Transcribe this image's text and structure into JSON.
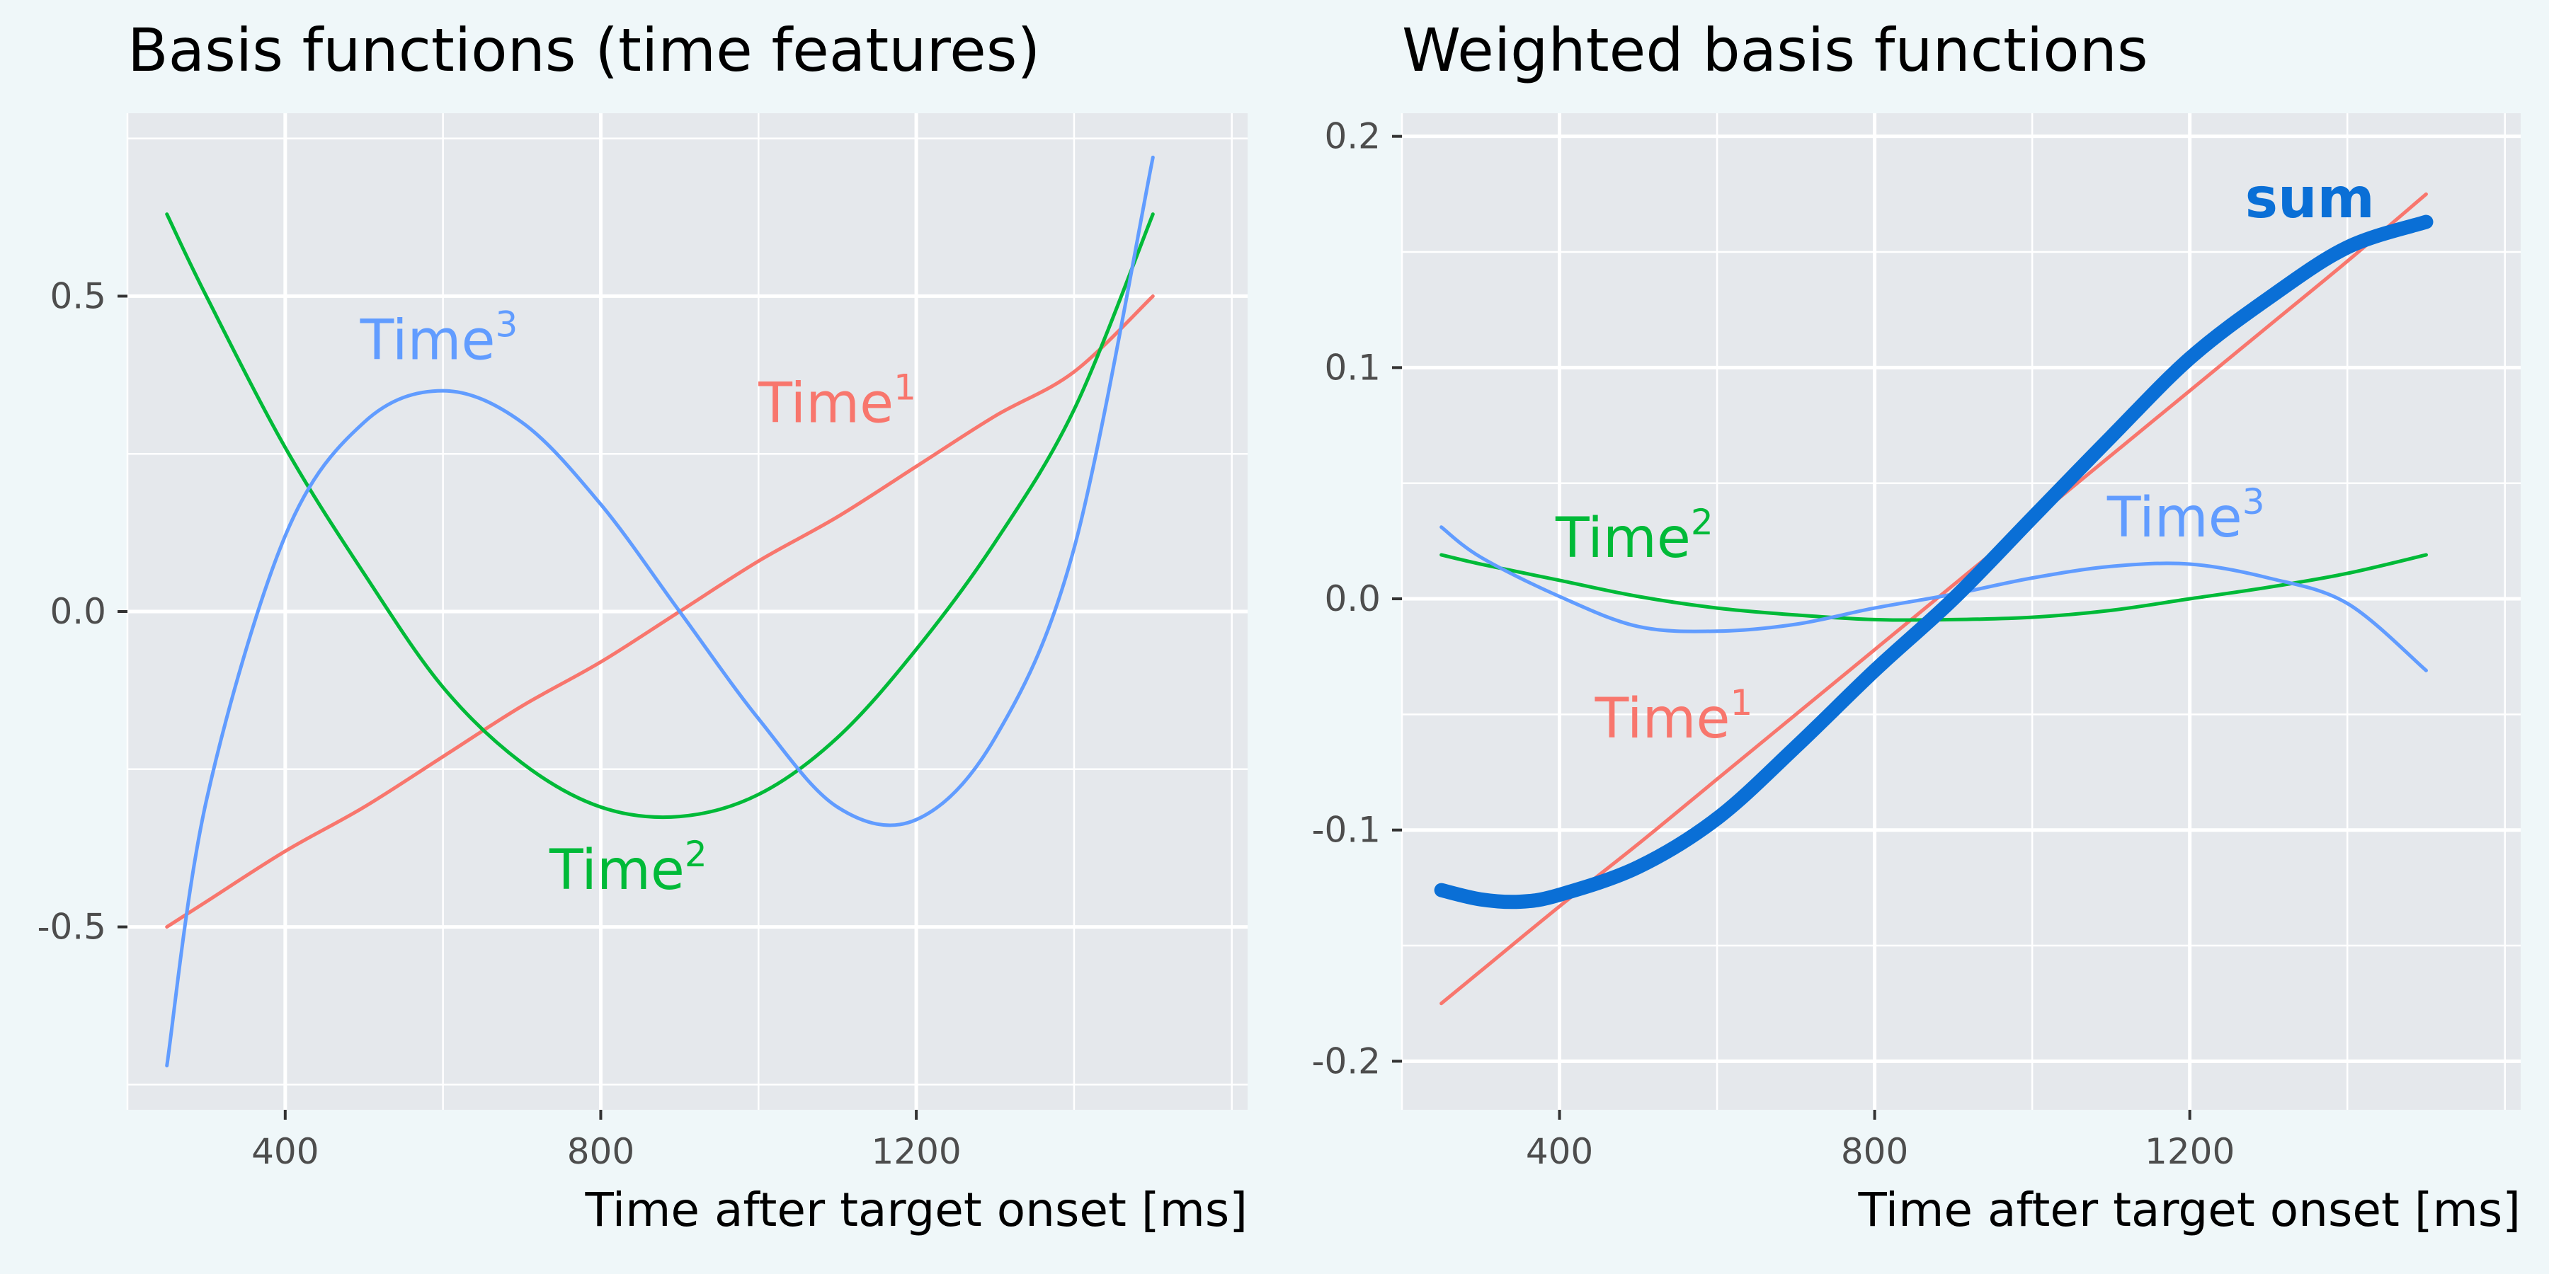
{
  "chart_data": [
    {
      "type": "line",
      "title": "Basis functions (time features)",
      "xlabel": "Time after target onset [ms]",
      "ylabel": "",
      "xlim": [
        200,
        1620
      ],
      "ylim": [
        -0.79,
        0.79
      ],
      "xticks": [
        400,
        800,
        1200
      ],
      "xtick_labels": [
        "400",
        "800",
        "1200"
      ],
      "yticks": [
        -0.5,
        0.0,
        0.5
      ],
      "ytick_labels": [
        "-0.5",
        "0.0",
        "0.5"
      ],
      "grid": true,
      "series": [
        {
          "base": "Time",
          "power": "1",
          "color": "#f8766d",
          "width": 5,
          "label_pos": [
            1000,
            0.3
          ],
          "x": [
            250,
            300,
            400,
            500,
            600,
            700,
            800,
            900,
            1000,
            1100,
            1200,
            1300,
            1400,
            1500
          ],
          "y": [
            -0.5,
            -0.46,
            -0.38,
            -0.31,
            -0.23,
            -0.15,
            -0.08,
            0.0,
            0.08,
            0.15,
            0.23,
            0.31,
            0.38,
            0.5
          ]
        },
        {
          "base": "Time",
          "power": "2",
          "color": "#00ba38",
          "width": 5,
          "label_pos": [
            735,
            -0.44
          ],
          "x": [
            250,
            300,
            400,
            500,
            600,
            700,
            800,
            900,
            1000,
            1100,
            1200,
            1300,
            1400,
            1500
          ],
          "y": [
            0.63,
            0.5,
            0.26,
            0.06,
            -0.12,
            -0.24,
            -0.31,
            -0.325,
            -0.29,
            -0.2,
            -0.06,
            0.11,
            0.32,
            0.63
          ]
        },
        {
          "base": "Time",
          "power": "3",
          "color": "#619cff",
          "width": 5,
          "label_pos": [
            495,
            0.4
          ],
          "x": [
            250,
            300,
            400,
            500,
            600,
            700,
            800,
            900,
            1000,
            1100,
            1200,
            1300,
            1400,
            1500
          ],
          "y": [
            -0.72,
            -0.3,
            0.12,
            0.3,
            0.35,
            0.3,
            0.17,
            0.0,
            -0.17,
            -0.31,
            -0.33,
            -0.2,
            0.1,
            0.72
          ]
        }
      ]
    },
    {
      "type": "line",
      "title": "Weighted basis functions",
      "xlabel": "Time after target onset [ms]",
      "ylabel": "",
      "xlim": [
        200,
        1620
      ],
      "ylim": [
        -0.221,
        0.21
      ],
      "xticks": [
        400,
        800,
        1200
      ],
      "xtick_labels": [
        "400",
        "800",
        "1200"
      ],
      "yticks": [
        -0.2,
        -0.1,
        0.0,
        0.1,
        0.2
      ],
      "ytick_labels": [
        "-0.2",
        "-0.1",
        "0.0",
        "0.1",
        "0.2"
      ],
      "grid": true,
      "series": [
        {
          "base": "Time",
          "power": "1",
          "color": "#f8766d",
          "width": 5,
          "label_pos": [
            445,
            -0.06
          ],
          "x": [
            250,
            300,
            400,
            500,
            600,
            700,
            800,
            900,
            1000,
            1100,
            1200,
            1300,
            1400,
            1500
          ],
          "y": [
            -0.175,
            -0.161,
            -0.133,
            -0.106,
            -0.078,
            -0.05,
            -0.022,
            0.006,
            0.034,
            0.062,
            0.09,
            0.118,
            0.146,
            0.175
          ]
        },
        {
          "base": "Time",
          "power": "2",
          "color": "#00ba38",
          "width": 5,
          "label_pos": [
            395,
            0.018
          ],
          "x": [
            250,
            300,
            400,
            500,
            600,
            700,
            800,
            900,
            1000,
            1100,
            1200,
            1300,
            1400,
            1500
          ],
          "y": [
            0.019,
            0.015,
            0.008,
            0.001,
            -0.004,
            -0.007,
            -0.009,
            -0.009,
            -0.008,
            -0.005,
            0.0,
            0.005,
            0.011,
            0.019
          ]
        },
        {
          "base": "Time",
          "power": "3",
          "color": "#619cff",
          "width": 5,
          "label_pos": [
            1095,
            0.027
          ],
          "x": [
            250,
            300,
            400,
            500,
            600,
            700,
            800,
            900,
            1000,
            1100,
            1200,
            1300,
            1400,
            1500
          ],
          "y": [
            0.031,
            0.018,
            0.001,
            -0.012,
            -0.014,
            -0.011,
            -0.004,
            0.002,
            0.009,
            0.014,
            0.015,
            0.009,
            -0.002,
            -0.031
          ]
        },
        {
          "base": "sum",
          "power": "",
          "color": "#0a6fd6",
          "width": 20,
          "bold": true,
          "label_pos": [
            1270,
            0.165
          ],
          "x": [
            250,
            300,
            350,
            400,
            500,
            600,
            700,
            800,
            900,
            1000,
            1100,
            1200,
            1300,
            1400,
            1500
          ],
          "y": [
            -0.126,
            -0.13,
            -0.131,
            -0.128,
            -0.116,
            -0.095,
            -0.064,
            -0.031,
            0.0,
            0.035,
            0.07,
            0.104,
            0.13,
            0.152,
            0.163
          ]
        }
      ]
    }
  ]
}
